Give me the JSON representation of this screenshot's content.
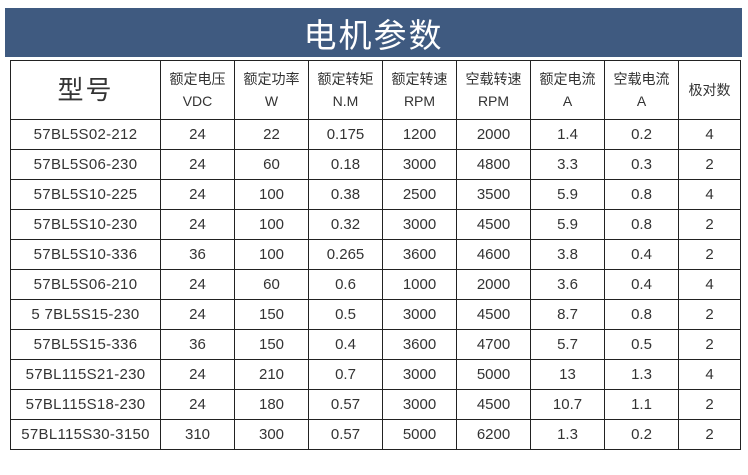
{
  "banner": {
    "title": "电机参数"
  },
  "table": {
    "headers": [
      {
        "line1": "型号",
        "line2": ""
      },
      {
        "line1": "额定电压",
        "line2": "VDC"
      },
      {
        "line1": "额定功率",
        "line2": "W"
      },
      {
        "line1": "额定转矩",
        "line2": "N.M"
      },
      {
        "line1": "额定转速",
        "line2": "RPM"
      },
      {
        "line1": "空载转速",
        "line2": "RPM"
      },
      {
        "line1": "额定电流",
        "line2": "A"
      },
      {
        "line1": "空载电流",
        "line2": "A"
      },
      {
        "line1": "极对数",
        "line2": ""
      }
    ],
    "rows": [
      [
        "57BL5S02-212",
        "24",
        "22",
        "0.175",
        "1200",
        "2000",
        "1.4",
        "0.2",
        "4"
      ],
      [
        "57BL5S06-230",
        "24",
        "60",
        "0.18",
        "3000",
        "4800",
        "3.3",
        "0.3",
        "2"
      ],
      [
        "57BL5S10-225",
        "24",
        "100",
        "0.38",
        "2500",
        "3500",
        "5.9",
        "0.8",
        "4"
      ],
      [
        "57BL5S10-230",
        "24",
        "100",
        "0.32",
        "3000",
        "4500",
        "5.9",
        "0.8",
        "2"
      ],
      [
        "57BL5S10-336",
        "36",
        "100",
        "0.265",
        "3600",
        "4600",
        "3.8",
        "0.4",
        "2"
      ],
      [
        "57BL5S06-210",
        "24",
        "60",
        "0.6",
        "1000",
        "2000",
        "3.6",
        "0.4",
        "4"
      ],
      [
        "5 7BL5S15-230",
        "24",
        "150",
        "0.5",
        "3000",
        "4500",
        "8.7",
        "0.8",
        "2"
      ],
      [
        "57BL5S15-336",
        "36",
        "150",
        "0.4",
        "3600",
        "4700",
        "5.7",
        "0.5",
        "2"
      ],
      [
        "57BL115S21-230",
        "24",
        "210",
        "0.7",
        "3000",
        "5000",
        "13",
        "1.3",
        "4"
      ],
      [
        "57BL115S18-230",
        "24",
        "180",
        "0.57",
        "3000",
        "4500",
        "10.7",
        "1.1",
        "2"
      ],
      [
        "57BL115S30-3150",
        "310",
        "300",
        "0.57",
        "5000",
        "6200",
        "1.3",
        "0.2",
        "2"
      ]
    ]
  }
}
